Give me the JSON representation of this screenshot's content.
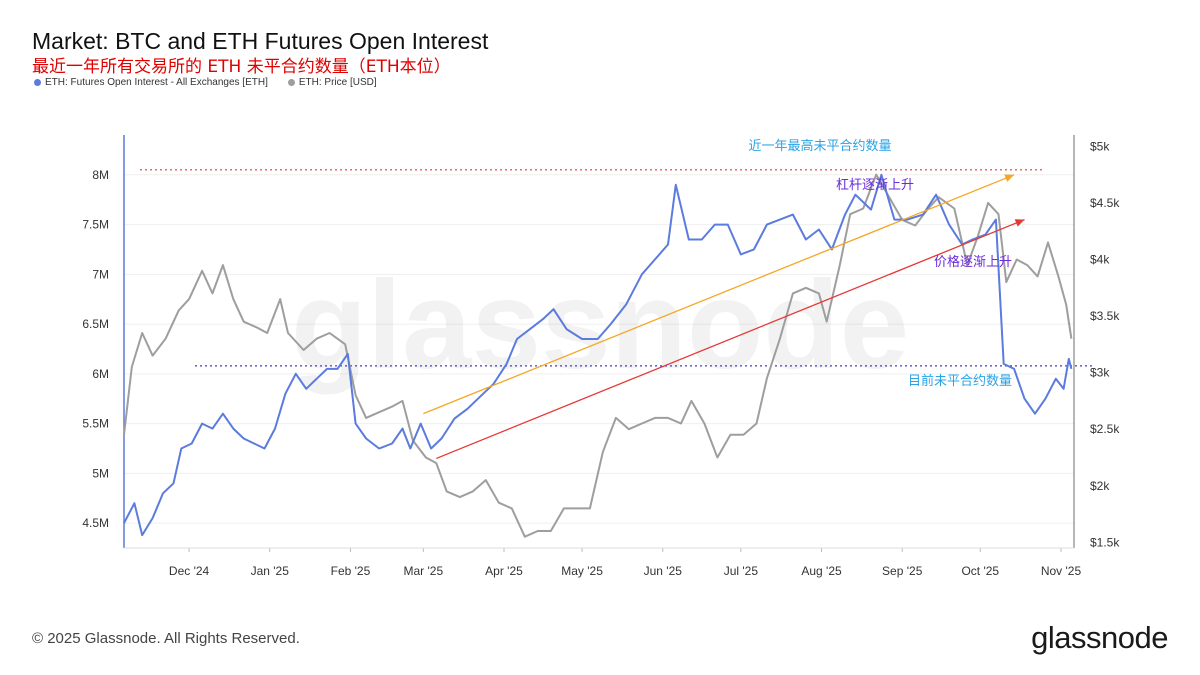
{
  "header": {
    "title": "Market: BTC and ETH Futures Open Interest",
    "subtitle": "最近一年所有交易所的 ETH 未平合约数量（ETH本位）",
    "legend": [
      {
        "label": "ETH: Futures Open Interest - All Exchanges [ETH]",
        "color": "#5b7bde"
      },
      {
        "label": "ETH: Price [USD]",
        "color": "#9e9e9e"
      }
    ]
  },
  "footer": {
    "copyright": "© 2025 Glassnode. All Rights Reserved.",
    "logo": "glassnode"
  },
  "watermark": "glassnode",
  "chart_data": {
    "type": "line",
    "x_tick_labels": [
      "Dec '24",
      "Jan '25",
      "Feb '25",
      "Mar '25",
      "Apr '25",
      "May '25",
      "Jun '25",
      "Jul '25",
      "Aug '25",
      "Sep '25",
      "Oct '25",
      "Nov '25"
    ],
    "left_axis": {
      "ticks": [
        4500000,
        5000000,
        5500000,
        6000000,
        6500000,
        7000000,
        7500000,
        8000000
      ],
      "tick_labels": [
        "4.5M",
        "5M",
        "5.5M",
        "6M",
        "6.5M",
        "7M",
        "7.5M",
        "8M"
      ],
      "range": [
        4250000,
        8400000
      ]
    },
    "right_axis": {
      "ticks": [
        1500,
        2000,
        2500,
        3000,
        3500,
        4000,
        4500,
        5000
      ],
      "tick_labels": [
        "$1.5k",
        "$2k",
        "$2.5k",
        "$3k",
        "$3.5k",
        "$4k",
        "$4.5k",
        "$5k"
      ],
      "range": [
        1450,
        5100
      ]
    },
    "series": [
      {
        "name": "ETH: Futures Open Interest - All Exchanges [ETH]",
        "axis": "left",
        "color": "#5b7bde",
        "points": [
          [
            "2024-11-06",
            4500000
          ],
          [
            "2024-11-10",
            4700000
          ],
          [
            "2024-11-13",
            4380000
          ],
          [
            "2024-11-17",
            4550000
          ],
          [
            "2024-11-21",
            4800000
          ],
          [
            "2024-11-25",
            4900000
          ],
          [
            "2024-11-28",
            5250000
          ],
          [
            "2024-12-02",
            5300000
          ],
          [
            "2024-12-06",
            5500000
          ],
          [
            "2024-12-10",
            5450000
          ],
          [
            "2024-12-14",
            5600000
          ],
          [
            "2024-12-18",
            5450000
          ],
          [
            "2024-12-22",
            5350000
          ],
          [
            "2024-12-26",
            5300000
          ],
          [
            "2024-12-30",
            5250000
          ],
          [
            "2025-01-03",
            5450000
          ],
          [
            "2025-01-07",
            5800000
          ],
          [
            "2025-01-11",
            6000000
          ],
          [
            "2025-01-15",
            5850000
          ],
          [
            "2025-01-19",
            5950000
          ],
          [
            "2025-01-23",
            6050000
          ],
          [
            "2025-01-27",
            6050000
          ],
          [
            "2025-01-31",
            6200000
          ],
          [
            "2025-02-03",
            5500000
          ],
          [
            "2025-02-07",
            5350000
          ],
          [
            "2025-02-12",
            5250000
          ],
          [
            "2025-02-17",
            5300000
          ],
          [
            "2025-02-21",
            5450000
          ],
          [
            "2025-02-24",
            5250000
          ],
          [
            "2025-02-28",
            5500000
          ],
          [
            "2025-03-04",
            5250000
          ],
          [
            "2025-03-08",
            5350000
          ],
          [
            "2025-03-13",
            5550000
          ],
          [
            "2025-03-18",
            5650000
          ],
          [
            "2025-03-24",
            5800000
          ],
          [
            "2025-03-28",
            5900000
          ],
          [
            "2025-04-02",
            6100000
          ],
          [
            "2025-04-06",
            6350000
          ],
          [
            "2025-04-11",
            6450000
          ],
          [
            "2025-04-16",
            6550000
          ],
          [
            "2025-04-20",
            6650000
          ],
          [
            "2025-04-25",
            6450000
          ],
          [
            "2025-05-01",
            6350000
          ],
          [
            "2025-05-07",
            6350000
          ],
          [
            "2025-05-12",
            6500000
          ],
          [
            "2025-05-18",
            6700000
          ],
          [
            "2025-05-24",
            7000000
          ],
          [
            "2025-05-29",
            7150000
          ],
          [
            "2025-06-03",
            7300000
          ],
          [
            "2025-06-06",
            7900000
          ],
          [
            "2025-06-11",
            7350000
          ],
          [
            "2025-06-16",
            7350000
          ],
          [
            "2025-06-21",
            7500000
          ],
          [
            "2025-06-26",
            7500000
          ],
          [
            "2025-07-01",
            7200000
          ],
          [
            "2025-07-06",
            7250000
          ],
          [
            "2025-07-11",
            7500000
          ],
          [
            "2025-07-16",
            7550000
          ],
          [
            "2025-07-21",
            7600000
          ],
          [
            "2025-07-26",
            7350000
          ],
          [
            "2025-07-31",
            7450000
          ],
          [
            "2025-08-05",
            7250000
          ],
          [
            "2025-08-10",
            7600000
          ],
          [
            "2025-08-14",
            7800000
          ],
          [
            "2025-08-20",
            7650000
          ],
          [
            "2025-08-24",
            8000000
          ],
          [
            "2025-08-29",
            7550000
          ],
          [
            "2025-09-03",
            7550000
          ],
          [
            "2025-09-09",
            7600000
          ],
          [
            "2025-09-14",
            7800000
          ],
          [
            "2025-09-19",
            7500000
          ],
          [
            "2025-09-24",
            7300000
          ],
          [
            "2025-09-28",
            7350000
          ],
          [
            "2025-10-03",
            7400000
          ],
          [
            "2025-10-07",
            7550000
          ],
          [
            "2025-10-10",
            6100000
          ],
          [
            "2025-10-14",
            6050000
          ],
          [
            "2025-10-18",
            5750000
          ],
          [
            "2025-10-22",
            5600000
          ],
          [
            "2025-10-26",
            5750000
          ],
          [
            "2025-10-30",
            5950000
          ],
          [
            "2025-11-02",
            5850000
          ],
          [
            "2025-11-04",
            6150000
          ],
          [
            "2025-11-05",
            6050000
          ]
        ]
      },
      {
        "name": "ETH: Price [USD]",
        "axis": "right",
        "color": "#9e9e9e",
        "points": [
          [
            "2024-11-06",
            2450
          ],
          [
            "2024-11-09",
            3050
          ],
          [
            "2024-11-13",
            3350
          ],
          [
            "2024-11-17",
            3150
          ],
          [
            "2024-11-22",
            3300
          ],
          [
            "2024-11-27",
            3550
          ],
          [
            "2024-12-01",
            3650
          ],
          [
            "2024-12-06",
            3900
          ],
          [
            "2024-12-10",
            3700
          ],
          [
            "2024-12-14",
            3950
          ],
          [
            "2024-12-18",
            3650
          ],
          [
            "2024-12-22",
            3450
          ],
          [
            "2024-12-27",
            3400
          ],
          [
            "2024-12-31",
            3350
          ],
          [
            "2025-01-05",
            3650
          ],
          [
            "2025-01-08",
            3350
          ],
          [
            "2025-01-14",
            3200
          ],
          [
            "2025-01-19",
            3300
          ],
          [
            "2025-01-24",
            3350
          ],
          [
            "2025-01-30",
            3250
          ],
          [
            "2025-02-03",
            2800
          ],
          [
            "2025-02-07",
            2600
          ],
          [
            "2025-02-12",
            2650
          ],
          [
            "2025-02-17",
            2700
          ],
          [
            "2025-02-21",
            2750
          ],
          [
            "2025-02-25",
            2400
          ],
          [
            "2025-03-02",
            2250
          ],
          [
            "2025-03-06",
            2200
          ],
          [
            "2025-03-10",
            1950
          ],
          [
            "2025-03-15",
            1900
          ],
          [
            "2025-03-20",
            1950
          ],
          [
            "2025-03-25",
            2050
          ],
          [
            "2025-03-30",
            1850
          ],
          [
            "2025-04-04",
            1800
          ],
          [
            "2025-04-09",
            1550
          ],
          [
            "2025-04-14",
            1600
          ],
          [
            "2025-04-19",
            1600
          ],
          [
            "2025-04-24",
            1800
          ],
          [
            "2025-04-29",
            1800
          ],
          [
            "2025-05-04",
            1800
          ],
          [
            "2025-05-09",
            2300
          ],
          [
            "2025-05-14",
            2600
          ],
          [
            "2025-05-19",
            2500
          ],
          [
            "2025-05-24",
            2550
          ],
          [
            "2025-05-29",
            2600
          ],
          [
            "2025-06-03",
            2600
          ],
          [
            "2025-06-08",
            2550
          ],
          [
            "2025-06-12",
            2750
          ],
          [
            "2025-06-17",
            2550
          ],
          [
            "2025-06-22",
            2250
          ],
          [
            "2025-06-27",
            2450
          ],
          [
            "2025-07-02",
            2450
          ],
          [
            "2025-07-07",
            2550
          ],
          [
            "2025-07-11",
            2950
          ],
          [
            "2025-07-16",
            3300
          ],
          [
            "2025-07-21",
            3700
          ],
          [
            "2025-07-26",
            3750
          ],
          [
            "2025-07-31",
            3700
          ],
          [
            "2025-08-03",
            3450
          ],
          [
            "2025-08-08",
            3950
          ],
          [
            "2025-08-12",
            4400
          ],
          [
            "2025-08-17",
            4450
          ],
          [
            "2025-08-22",
            4750
          ],
          [
            "2025-08-27",
            4550
          ],
          [
            "2025-09-01",
            4350
          ],
          [
            "2025-09-06",
            4300
          ],
          [
            "2025-09-11",
            4450
          ],
          [
            "2025-09-15",
            4550
          ],
          [
            "2025-09-21",
            4450
          ],
          [
            "2025-09-26",
            3950
          ],
          [
            "2025-09-30",
            4200
          ],
          [
            "2025-10-04",
            4500
          ],
          [
            "2025-10-08",
            4400
          ],
          [
            "2025-10-11",
            3800
          ],
          [
            "2025-10-15",
            4000
          ],
          [
            "2025-10-19",
            3950
          ],
          [
            "2025-10-23",
            3850
          ],
          [
            "2025-10-27",
            4150
          ],
          [
            "2025-10-31",
            3850
          ],
          [
            "2025-11-03",
            3600
          ],
          [
            "2025-11-05",
            3300
          ]
        ]
      }
    ],
    "annotations": [
      {
        "text": "近一年最高未平合约数量",
        "color": "#29a3e6"
      },
      {
        "text": "杠杆逐渐上升",
        "color": "#6a2bd9"
      },
      {
        "text": "价格逐渐上升",
        "color": "#6a2bd9"
      },
      {
        "text": "目前未平合约数量",
        "color": "#29a3e6"
      }
    ],
    "reference_lines": [
      {
        "axis": "left",
        "value": 8050000,
        "color": "#e53935",
        "style": "dotted"
      },
      {
        "axis": "left",
        "value": 6080000,
        "color": "#3f3fbf",
        "style": "dotted"
      }
    ],
    "trend_arrows": [
      {
        "from": [
          "2025-03-01",
          5600000
        ],
        "to": [
          "2025-10-14",
          8000000
        ],
        "color": "#f5a623"
      },
      {
        "from": [
          "2025-03-06",
          5150000
        ],
        "to": [
          "2025-10-18",
          7550000
        ],
        "color": "#e53935"
      }
    ],
    "grid": true
  }
}
